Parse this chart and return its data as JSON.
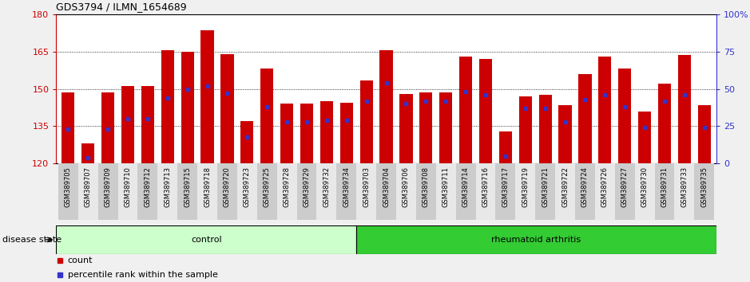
{
  "title": "GDS3794 / ILMN_1654689",
  "samples": [
    "GSM389705",
    "GSM389707",
    "GSM389709",
    "GSM389710",
    "GSM389712",
    "GSM389713",
    "GSM389715",
    "GSM389718",
    "GSM389720",
    "GSM389723",
    "GSM389725",
    "GSM389728",
    "GSM389729",
    "GSM389732",
    "GSM389734",
    "GSM389703",
    "GSM389704",
    "GSM389706",
    "GSM389708",
    "GSM389711",
    "GSM389714",
    "GSM389716",
    "GSM389717",
    "GSM389719",
    "GSM389721",
    "GSM389722",
    "GSM389724",
    "GSM389726",
    "GSM389727",
    "GSM389730",
    "GSM389731",
    "GSM389733",
    "GSM389735"
  ],
  "counts": [
    148.5,
    128.0,
    148.5,
    151.0,
    151.0,
    165.5,
    165.0,
    173.5,
    164.0,
    137.0,
    158.0,
    144.0,
    144.0,
    145.0,
    144.5,
    153.5,
    165.5,
    148.0,
    148.5,
    148.5,
    163.0,
    162.0,
    133.0,
    147.0,
    147.5,
    143.5,
    156.0,
    163.0,
    158.0,
    141.0,
    152.0,
    163.5,
    143.5
  ],
  "percentile_ranks": [
    23,
    4,
    23,
    30,
    30,
    44,
    50,
    52,
    47,
    18,
    38,
    28,
    28,
    29,
    29,
    42,
    54,
    40,
    42,
    42,
    48,
    46,
    5,
    37,
    37,
    28,
    43,
    46,
    38,
    24,
    42,
    46,
    24
  ],
  "n_control": 15,
  "n_rheumatoid": 18,
  "ymin": 120,
  "ymax": 180,
  "yticks_left": [
    120,
    135,
    150,
    165,
    180
  ],
  "yticks_right": [
    0,
    25,
    50,
    75,
    100
  ],
  "bar_color": "#cc0000",
  "percentile_color": "#3333cc",
  "control_color": "#ccffcc",
  "rheumatoid_color": "#33cc33",
  "background_color": "#f0f0f0",
  "plot_bg_color": "#ffffff",
  "xticklabel_color_even": "#cccccc",
  "xticklabel_color_odd": "#e8e8e8",
  "control_label": "control",
  "rheumatoid_label": "rheumatoid arthritis",
  "disease_state_label": "disease state",
  "legend_count": "count",
  "legend_percentile": "percentile rank within the sample"
}
